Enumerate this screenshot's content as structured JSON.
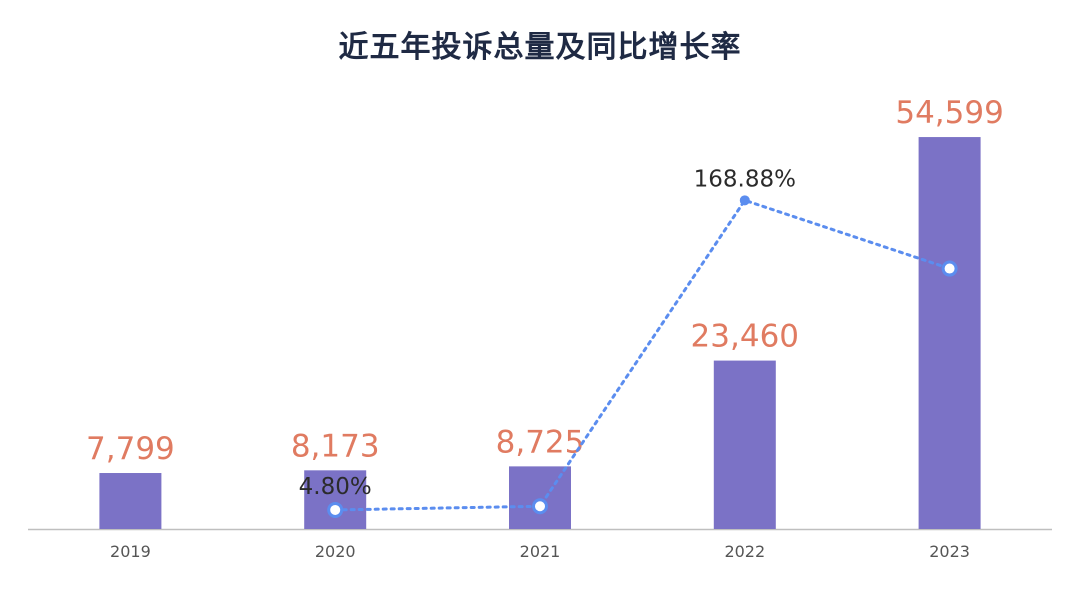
{
  "chart_data": {
    "type": "bar",
    "title": "近五年投诉总量及同比增长率",
    "categories": [
      "2019",
      "2020",
      "2021",
      "2022",
      "2023"
    ],
    "series": [
      {
        "type": "bar",
        "values": [
          7799,
          8173,
          8725,
          23460,
          54599
        ],
        "labels": [
          "7,799",
          "8,173",
          "8,725",
          "23,460",
          "54,599"
        ]
      },
      {
        "type": "line",
        "style": "dotted",
        "values": [
          null,
          4.8,
          6.75,
          168.88,
          132.73
        ],
        "labels": [
          null,
          "4.80%",
          null,
          "168.88%",
          null
        ]
      }
    ],
    "bar_ylim": [
      0,
      56000
    ],
    "line_ylim": [
      0,
      230
    ],
    "grid": false,
    "legend": "none"
  },
  "colors": {
    "bar": "#7b72c6",
    "value_label": "#e07b61",
    "line": "#5b8def",
    "axis": "#bfbfbf",
    "title": "#1f2a44"
  }
}
